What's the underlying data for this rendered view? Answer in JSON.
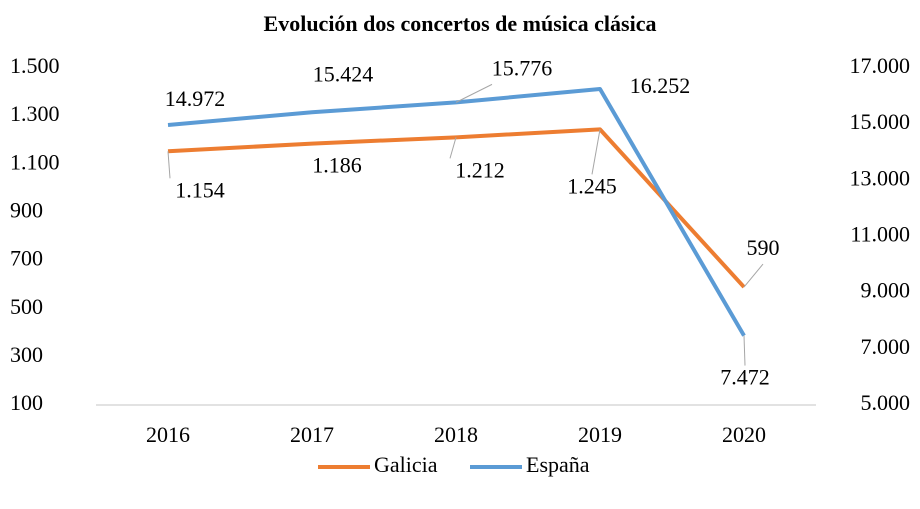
{
  "chart_data": {
    "type": "line",
    "title": "Evolución dos concertos de música clásica",
    "categories": [
      "2016",
      "2017",
      "2018",
      "2019",
      "2020"
    ],
    "series": [
      {
        "name": "Galicia",
        "color": "#ed7d31",
        "values": [
          1154,
          1186,
          1212,
          1245,
          590
        ],
        "value_labels": [
          "1.154",
          "1.186",
          "1.212",
          "1.245",
          "590"
        ]
      },
      {
        "name": "España",
        "color": "#5b9bd5",
        "axis": "y2",
        "values": [
          14972,
          15424,
          15776,
          16252,
          7472
        ],
        "value_labels": [
          "14.972",
          "15.424",
          "15.776",
          "16.252",
          "7.472"
        ]
      }
    ],
    "ylim": [
      100,
      1500
    ],
    "yticks": [
      100,
      300,
      500,
      700,
      900,
      {
        "value": 1100,
        "label": "1.100"
      },
      {
        "value": 1300,
        "label": "1.300"
      },
      {
        "value": 1500,
        "label": "1.500"
      }
    ],
    "y2lim": [
      5000,
      17000
    ],
    "y2ticks": [
      {
        "value": 5000,
        "label": "5.000"
      },
      {
        "value": 7000,
        "label": "7.000"
      },
      {
        "value": 9000,
        "label": "9.000"
      },
      {
        "value": 11000,
        "label": "11.000"
      },
      {
        "value": 13000,
        "label": "13.000"
      },
      {
        "value": 15000,
        "label": "15.000"
      },
      {
        "value": 17000,
        "label": "17.000"
      }
    ],
    "grid": false,
    "legend": "bottom"
  }
}
